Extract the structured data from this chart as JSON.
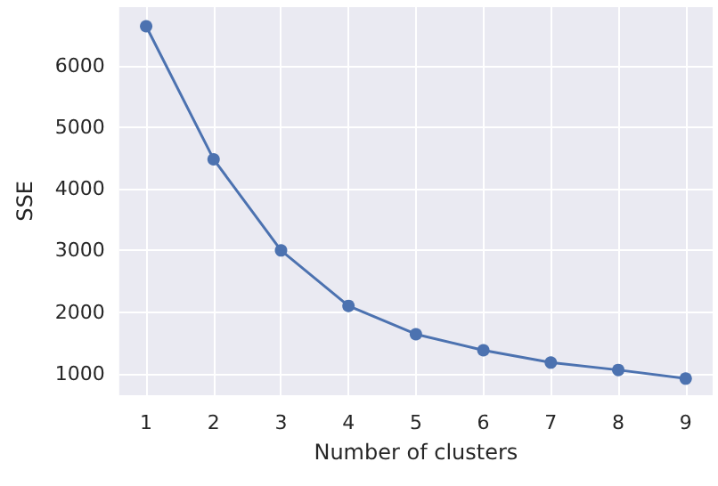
{
  "chart_data": {
    "type": "line",
    "xlabel": "Number of clusters",
    "ylabel": "SSE",
    "x": [
      1,
      2,
      3,
      4,
      5,
      6,
      7,
      8,
      9
    ],
    "series": [
      {
        "color": "#4c72b0",
        "values": [
          6640,
          4480,
          3000,
          2100,
          1640,
          1380,
          1180,
          1060,
          920
        ]
      }
    ],
    "xlim": [
      0.6,
      9.4
    ],
    "xticks": [
      1,
      2,
      3,
      4,
      5,
      6,
      7,
      8,
      9
    ],
    "ylim": [
      650,
      6950
    ],
    "yticks": [
      1000,
      2000,
      3000,
      4000,
      5000,
      6000
    ],
    "grid": true,
    "marker": "circle",
    "line_style": "solid"
  }
}
